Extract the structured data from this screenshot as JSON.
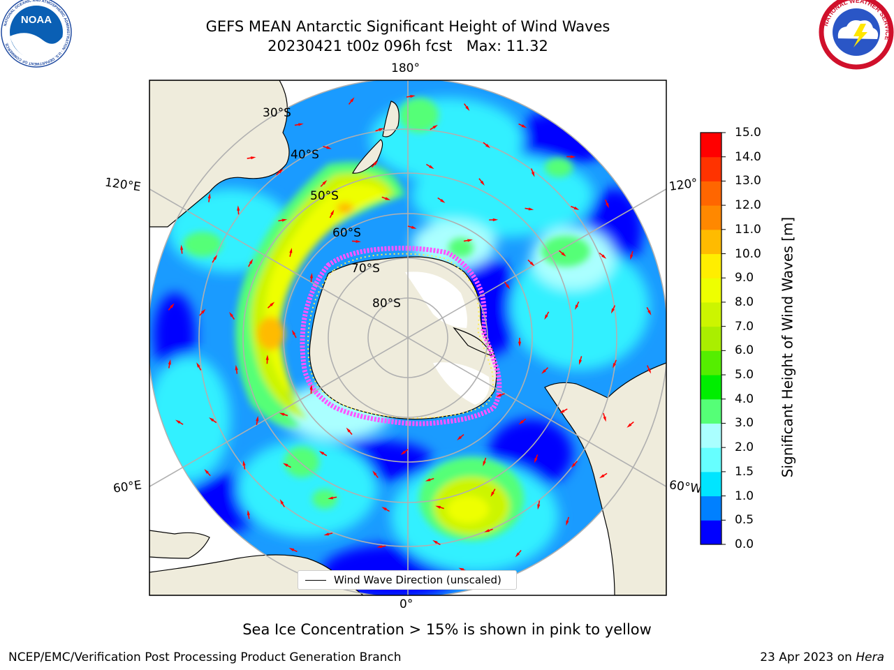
{
  "header": {
    "title": "GEFS MEAN Antarctic Significant Height of Wind Waves",
    "subtitle": "20230421 t00z 096h fcst   Max: 11.32"
  },
  "logos": {
    "left": {
      "text": "NOAA",
      "ring_text": "NATIONAL OCEANIC AND ATMOSPHERIC ADMINISTRATION · U.S. DEPARTMENT OF COMMERCE"
    },
    "right": {
      "ring_text": "NATIONAL WEATHER SERVICE"
    }
  },
  "map": {
    "projection": "south polar stereographic",
    "longitude_labels": {
      "top": "180°",
      "bottom": "0°",
      "upper_left": "120°E",
      "lower_left": "60°E",
      "upper_right": "120°",
      "lower_right": "60°W"
    },
    "latitude_labels": [
      "30°S",
      "40°S",
      "50°S",
      "60°S",
      "70°S",
      "80°S"
    ],
    "sea_ice_color": "#ff66ff",
    "land_color": "#efecdc",
    "arrow_color": "#ff0000"
  },
  "legend": {
    "label": "Wind Wave Direction (unscaled)"
  },
  "colorbar": {
    "label": "Significant Height of Wind Waves [m]",
    "ticks": [
      "0.0",
      "0.5",
      "1.0",
      "1.5",
      "2.0",
      "3.0",
      "4.0",
      "5.0",
      "6.0",
      "7.0",
      "8.0",
      "9.0",
      "10.0",
      "11.0",
      "12.0",
      "13.0",
      "14.0",
      "15.0"
    ],
    "colors": [
      "#0000ff",
      "#0080ff",
      "#00e5ff",
      "#66ffff",
      "#aaffff",
      "#55ff77",
      "#00ee00",
      "#55ee00",
      "#aaee00",
      "#ccf500",
      "#eeff00",
      "#ffee00",
      "#ffbb00",
      "#ff8800",
      "#ff6600",
      "#ff3300",
      "#ff0000"
    ]
  },
  "caption": "Sea Ice Concentration > 15% is shown in pink to yellow",
  "footer": {
    "left": "NCEP/EMC/Verification Post Processing Product Generation Branch",
    "right_prefix": "23 Apr 2023 on ",
    "right_host": "Hera"
  }
}
